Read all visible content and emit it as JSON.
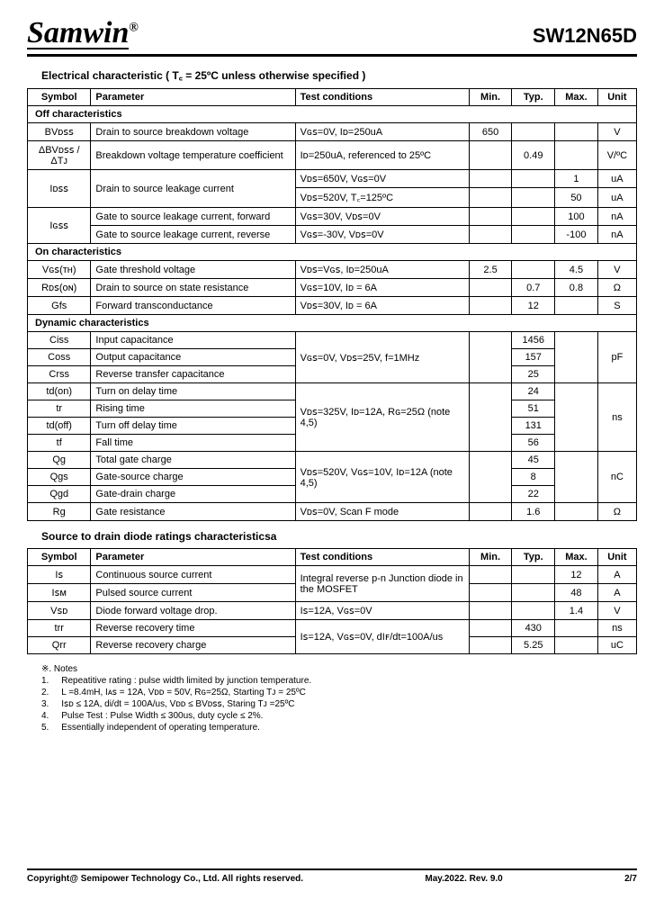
{
  "header": {
    "logo": "Samwin",
    "reg": "®",
    "partno": "SW12N65D"
  },
  "section1": "Electrical characteristic ( T꜀ = 25ºC unless otherwise specified )",
  "table1": {
    "head": {
      "symbol": "Symbol",
      "param": "Parameter",
      "cond": "Test conditions",
      "min": "Min.",
      "typ": "Typ.",
      "max": "Max.",
      "unit": "Unit"
    },
    "off_header": "Off characteristics",
    "off": [
      {
        "sym": "BVᴅꜱꜱ",
        "param": "Drain to source breakdown voltage",
        "cond": "Vɢꜱ=0V, Iᴅ=250uA",
        "min": "650",
        "typ": "",
        "max": "",
        "unit": "V"
      },
      {
        "sym": "ΔBVᴅꜱꜱ / ΔTᴊ",
        "param": "Breakdown voltage temperature coefficient",
        "cond": "Iᴅ=250uA, referenced to 25ºC",
        "min": "",
        "typ": "0.49",
        "max": "",
        "unit": "V/ºC"
      }
    ],
    "idss_sym": "Iᴅꜱꜱ",
    "idss_param": "Drain to source leakage current",
    "idss": [
      {
        "cond": "Vᴅꜱ=650V, Vɢꜱ=0V",
        "min": "",
        "typ": "",
        "max": "1",
        "unit": "uA"
      },
      {
        "cond": "Vᴅꜱ=520V, T꜀=125ºC",
        "min": "",
        "typ": "",
        "max": "50",
        "unit": "uA"
      }
    ],
    "igss_sym": "Iɢꜱꜱ",
    "igss": [
      {
        "param": "Gate to source leakage current, forward",
        "cond": "Vɢꜱ=30V, Vᴅꜱ=0V",
        "min": "",
        "typ": "",
        "max": "100",
        "unit": "nA"
      },
      {
        "param": "Gate to source leakage current, reverse",
        "cond": "Vɢꜱ=-30V, Vᴅꜱ=0V",
        "min": "",
        "typ": "",
        "max": "-100",
        "unit": "nA"
      }
    ],
    "on_header": "On characteristics",
    "on": [
      {
        "sym": "Vɢꜱ(ᴛʜ)",
        "param": "Gate threshold voltage",
        "cond": "Vᴅꜱ=Vɢꜱ, Iᴅ=250uA",
        "min": "2.5",
        "typ": "",
        "max": "4.5",
        "unit": "V"
      },
      {
        "sym": "Rᴅꜱ(ᴏɴ)",
        "param": "Drain to source on state resistance",
        "cond": "Vɢꜱ=10V, Iᴅ = 6A",
        "min": "",
        "typ": "0.7",
        "max": "0.8",
        "unit": "Ω"
      },
      {
        "sym": "Gfs",
        "param": "Forward transconductance",
        "cond": "Vᴅꜱ=30V, Iᴅ = 6A",
        "min": "",
        "typ": "12",
        "max": "",
        "unit": "S"
      }
    ],
    "dyn_header": "Dynamic characteristics",
    "cap_cond": "Vɢꜱ=0V, Vᴅꜱ=25V, f=1MHz",
    "cap": [
      {
        "sym": "Ciss",
        "param": "Input capacitance",
        "typ": "1456"
      },
      {
        "sym": "Coss",
        "param": "Output capacitance",
        "typ": "157"
      },
      {
        "sym": "Crss",
        "param": "Reverse transfer capacitance",
        "typ": "25"
      }
    ],
    "cap_unit": "pF",
    "time_cond": "Vᴅꜱ=325V, Iᴅ=12A, Rɢ=25Ω (note 4,5)",
    "time": [
      {
        "sym": "td(on)",
        "param": "Turn on delay time",
        "typ": "24"
      },
      {
        "sym": "tr",
        "param": "Rising time",
        "typ": "51"
      },
      {
        "sym": "td(off)",
        "param": "Turn off delay time",
        "typ": "131"
      },
      {
        "sym": "tf",
        "param": "Fall time",
        "typ": "56"
      }
    ],
    "time_unit": "ns",
    "charge_cond": "Vᴅꜱ=520V, Vɢꜱ=10V, Iᴅ=12A (note 4,5)",
    "charge": [
      {
        "sym": "Qg",
        "param": "Total gate charge",
        "typ": "45"
      },
      {
        "sym": "Qgs",
        "param": "Gate-source charge",
        "typ": "8"
      },
      {
        "sym": "Qgd",
        "param": "Gate-drain charge",
        "typ": "22"
      }
    ],
    "charge_unit": "nC",
    "rg": {
      "sym": "Rg",
      "param": "Gate resistance",
      "cond": "Vᴅꜱ=0V, Scan F mode",
      "typ": "1.6",
      "unit": "Ω"
    }
  },
  "section2": "Source to drain diode ratings characteristicsa",
  "table2": {
    "head": {
      "symbol": "Symbol",
      "param": "Parameter",
      "cond": "Test conditions",
      "min": "Min.",
      "typ": "Typ.",
      "max": "Max.",
      "unit": "Unit"
    },
    "cond_a": "Integral reverse p-n Junction diode in the MOSFET",
    "rows_a": [
      {
        "sym": "Iꜱ",
        "param": "Continuous source current",
        "min": "",
        "typ": "",
        "max": "12",
        "unit": "A"
      },
      {
        "sym": "Iꜱᴍ",
        "param": "Pulsed source current",
        "min": "",
        "typ": "",
        "max": "48",
        "unit": "A"
      }
    ],
    "row_b": {
      "sym": "Vꜱᴅ",
      "param": "Diode forward voltage drop.",
      "cond": "Iꜱ=12A, Vɢꜱ=0V",
      "min": "",
      "typ": "",
      "max": "1.4",
      "unit": "V"
    },
    "cond_c": "Iꜱ=12A, Vɢꜱ=0V, dIꜰ/dt=100A/us",
    "rows_c": [
      {
        "sym": "trr",
        "param": "Reverse recovery time",
        "min": "",
        "typ": "430",
        "max": "",
        "unit": "ns"
      },
      {
        "sym": "Qrr",
        "param": "Reverse recovery charge",
        "min": "",
        "typ": "5.25",
        "max": "",
        "unit": "uC"
      }
    ]
  },
  "notes": {
    "title": "※. Notes",
    "items": [
      "Repeatitive rating : pulse width limited by junction temperature.",
      "L =8.4mH, Iᴀꜱ = 12A, Vᴅᴅ = 50V, Rɢ=25Ω, Starting Tᴊ = 25ºC",
      "Iꜱᴅ ≤ 12A, di/dt = 100A/us, Vᴅᴅ ≤ BVᴅꜱꜱ, Staring Tᴊ =25ºC",
      "Pulse Test : Pulse Width ≤ 300us, duty cycle ≤ 2%.",
      "Essentially independent of operating temperature."
    ]
  },
  "footer": {
    "copy": "Copyright@ Semipower Technology Co., Ltd. All rights reserved.",
    "rev": "May.2022. Rev. 9.0",
    "page": "2/7"
  }
}
